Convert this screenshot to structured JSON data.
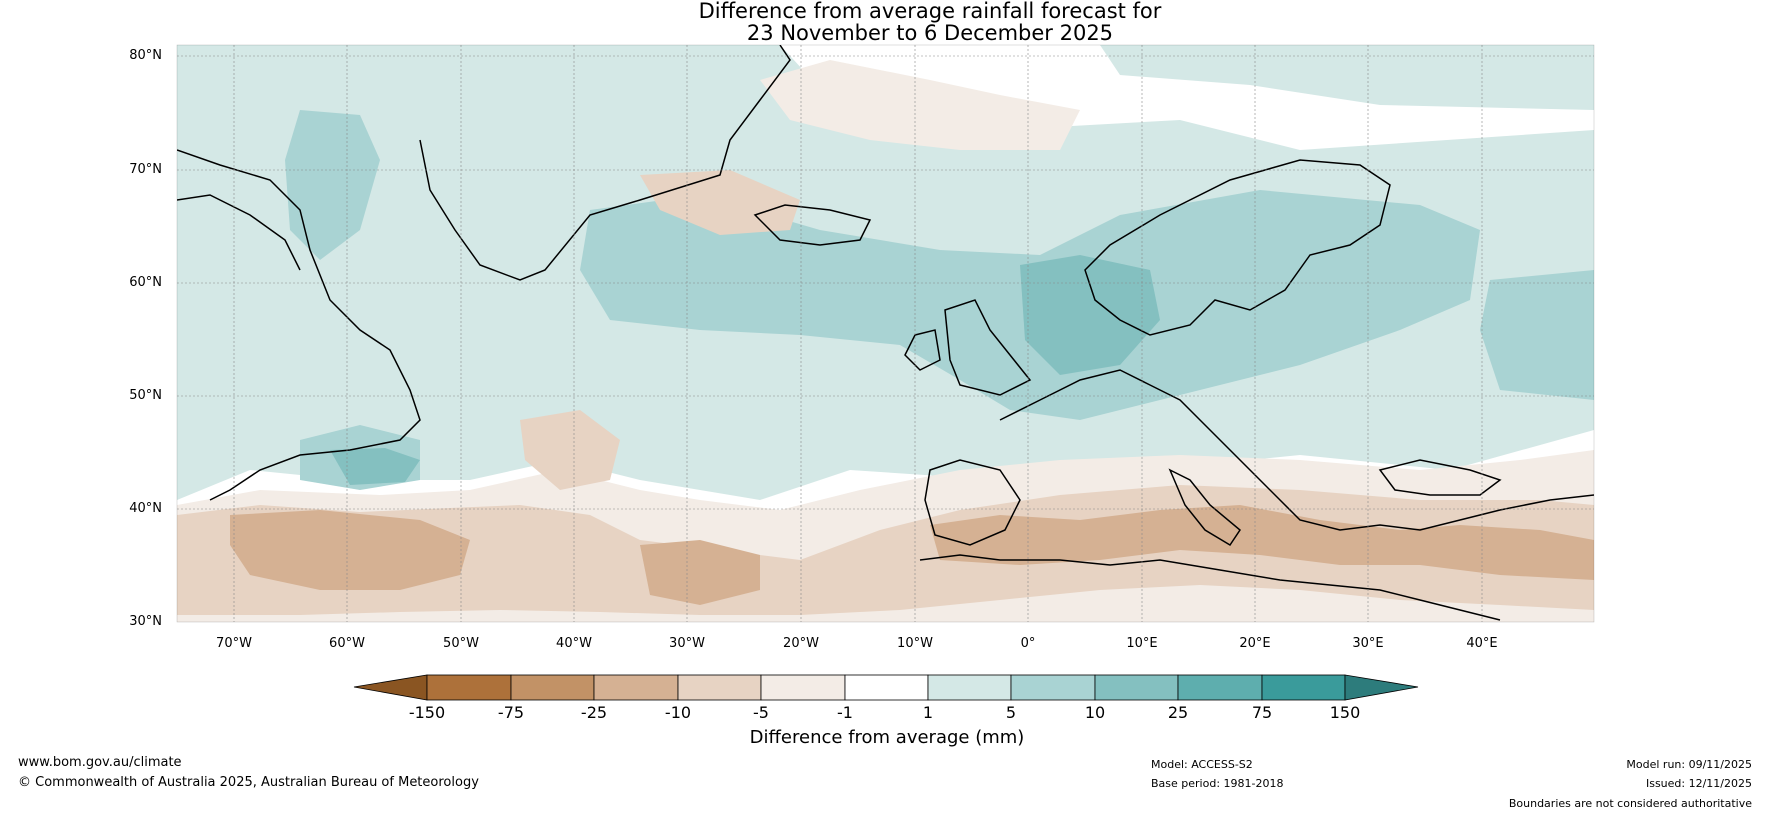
{
  "title": {
    "line1": "Difference from average rainfall forecast for",
    "line2": "23 November to 6 December 2025"
  },
  "map": {
    "lat_labels": [
      "80°N",
      "70°N",
      "60°N",
      "50°N",
      "40°N",
      "30°N"
    ],
    "lon_labels": [
      "70°W",
      "60°W",
      "50°W",
      "40°W",
      "30°W",
      "20°W",
      "10°W",
      "0°",
      "10°E",
      "20°E",
      "30°E",
      "40°E"
    ],
    "lat_range": [
      30,
      80
    ],
    "lon_range": [
      -75,
      50
    ]
  },
  "colorbar": {
    "ticks": [
      "-150",
      "-75",
      "-25",
      "-10",
      "-5",
      "-1",
      "1",
      "5",
      "10",
      "25",
      "75",
      "150"
    ],
    "colors": [
      "#8a5522",
      "#ad713a",
      "#c29266",
      "#d5b193",
      "#e7d3c3",
      "#f3ece6",
      "#ffffff",
      "#d4e8e6",
      "#a9d3d3",
      "#84c0c0",
      "#5eaeae",
      "#3a9b9b",
      "#2d7c7c"
    ],
    "label": "Difference from average (mm)"
  },
  "footer": {
    "website": "www.bom.gov.au/climate",
    "copyright": "© Commonwealth of Australia 2025, Australian Bureau of Meteorology",
    "model": "Model: ACCESS-S2",
    "base_period": "Base period: 1981-2018",
    "model_run": "Model run: 09/11/2025",
    "issued": "Issued: 12/11/2025",
    "disclaimer": "Boundaries are not considered authoritative"
  }
}
